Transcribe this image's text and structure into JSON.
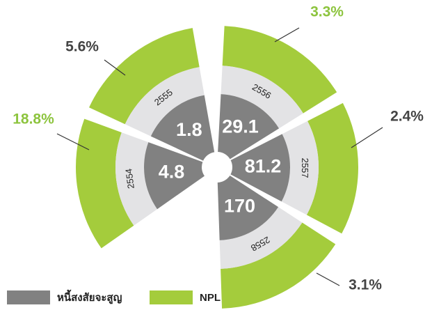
{
  "chart_data": {
    "type": "polar",
    "categories": [
      "2554",
      "2555",
      "2556",
      "2557",
      "2558"
    ],
    "series": [
      {
        "name": "หนี้สงสัยจะสูญ",
        "color": "#818181",
        "values": [
          4.8,
          1.8,
          29.1,
          81.2,
          170
        ]
      },
      {
        "name": "NPL",
        "color": "#a4cc3c",
        "values": [
          18.8,
          5.6,
          3.3,
          2.4,
          3.1
        ],
        "value_labels": [
          "18.8%",
          "5.6%",
          "3.3%",
          "2.4%",
          "3.1%"
        ],
        "label_colors": [
          "#8dc43e",
          "#444444",
          "#8dc43e",
          "#444444",
          "#444444"
        ]
      }
    ]
  }
}
